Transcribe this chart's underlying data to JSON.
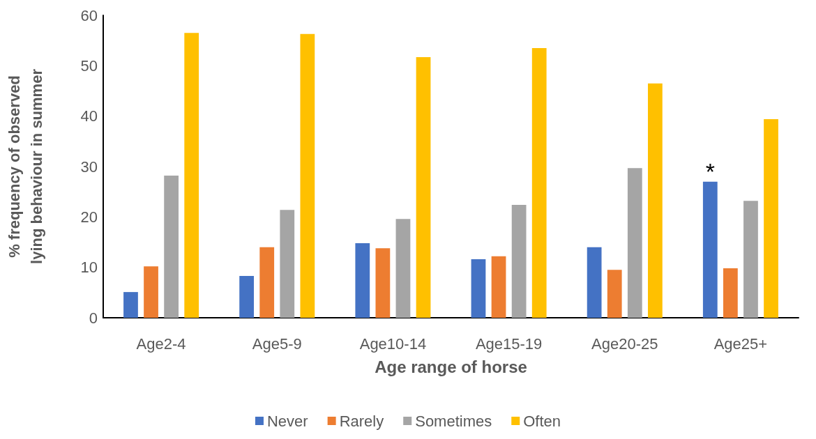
{
  "chart_data": {
    "type": "bar",
    "xlabel": "Age range of horse",
    "ylabel": "% frequency of observed lying behaviour in summer",
    "categories": [
      "Age2-4",
      "Age5-9",
      "Age10-14",
      "Age15-19",
      "Age20-25",
      "Age25+"
    ],
    "series": [
      {
        "name": "Never",
        "color": "#4472c4",
        "values": [
          5.1,
          8.3,
          14.8,
          11.6,
          14.0,
          27.0
        ]
      },
      {
        "name": "Rarely",
        "color": "#ed7d31",
        "values": [
          10.2,
          14.0,
          13.8,
          12.2,
          9.5,
          9.8
        ]
      },
      {
        "name": "Sometimes",
        "color": "#a5a5a5",
        "values": [
          28.2,
          21.4,
          19.6,
          22.4,
          29.7,
          23.2
        ]
      },
      {
        "name": "Often",
        "color": "#ffc000",
        "values": [
          56.5,
          56.3,
          51.7,
          53.5,
          46.5,
          39.4
        ]
      }
    ],
    "ylim": [
      0,
      60
    ],
    "yticks": [
      0,
      10,
      20,
      30,
      40,
      50,
      60
    ],
    "grid": false,
    "legend": "bottom",
    "annotations": [
      "*"
    ]
  }
}
